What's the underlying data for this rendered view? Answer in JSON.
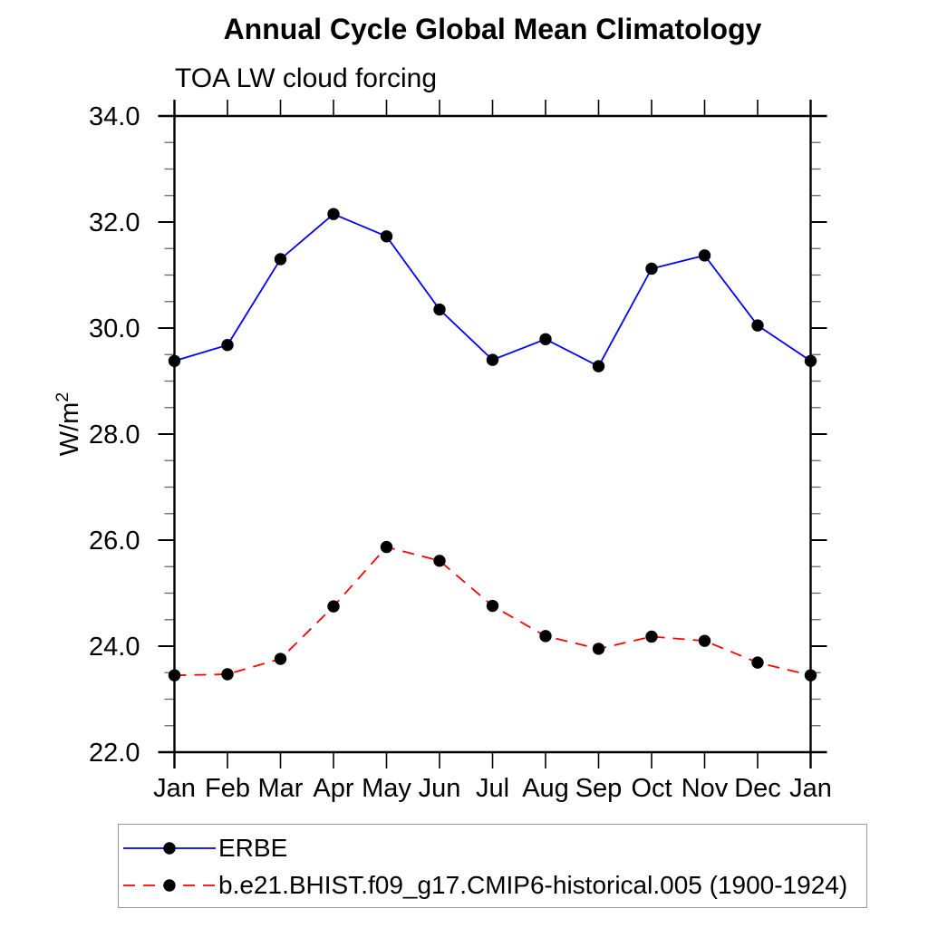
{
  "page": {
    "background": "#ffffff"
  },
  "chart_data": {
    "type": "line",
    "title": "Annual Cycle Global Mean Climatology",
    "subtitle": "TOA LW cloud forcing",
    "ylabel": {
      "base": "W/m",
      "sup": "2",
      "full": "W/m2"
    },
    "categories": [
      "Jan",
      "Feb",
      "Mar",
      "Apr",
      "May",
      "Jun",
      "Jul",
      "Aug",
      "Sep",
      "Oct",
      "Nov",
      "Dec",
      "Jan"
    ],
    "ylim": [
      22.0,
      34.0
    ],
    "ytick_major_interval": 2.0,
    "ytick_minor_interval": 0.5,
    "ytick_labels": [
      "22.0",
      "24.0",
      "26.0",
      "28.0",
      "30.0",
      "32.0",
      "34.0"
    ],
    "grid": false,
    "frame_style": "box-with-outward-ticks",
    "axis_color": "#000000",
    "marker": {
      "shape": "circle",
      "color": "#000000"
    },
    "series": [
      {
        "name": "ERBE",
        "color": "#0000ff",
        "line_style": "solid",
        "values": [
          29.38,
          29.68,
          31.3,
          32.15,
          31.73,
          30.35,
          29.4,
          29.79,
          29.28,
          31.12,
          31.37,
          30.05,
          29.38
        ]
      },
      {
        "name": "b.e21.BHIST.f09_g17.CMIP6-historical.005 (1900-1924)",
        "color": "#ff0000",
        "line_style": "dashed",
        "values": [
          23.45,
          23.47,
          23.76,
          24.75,
          25.87,
          25.61,
          24.76,
          24.19,
          23.95,
          24.18,
          24.1,
          23.69,
          23.45
        ]
      }
    ],
    "legend_position": "bottom-left"
  }
}
